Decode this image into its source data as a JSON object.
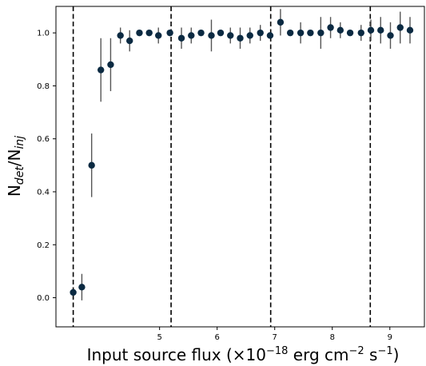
{
  "chart_data": {
    "type": "scatter",
    "xlabel_main": "Input source flux (×10",
    "xlabel_exp1": "−18",
    "xlabel_mid": " erg cm",
    "xlabel_exp2": "−2",
    "xlabel_end": " s",
    "xlabel_exp3": "−1",
    "xlabel_close": ")",
    "ylabel_n1": "N",
    "ylabel_sub1": "det",
    "ylabel_slash": "/N",
    "ylabel_sub2": "inj",
    "xlim": [
      3.2,
      9.6
    ],
    "ylim": [
      -0.11,
      1.1
    ],
    "x_ticks": [
      {
        "value": 5,
        "label": "5"
      },
      {
        "value": 6,
        "label": "6"
      },
      {
        "value": 7,
        "label": "7"
      },
      {
        "value": 8,
        "label": "8"
      },
      {
        "value": 9,
        "label": "9"
      }
    ],
    "y_ticks": [
      {
        "value": 0.0,
        "label": "0.0"
      },
      {
        "value": 0.2,
        "label": "0.2"
      },
      {
        "value": 0.4,
        "label": "0.4"
      },
      {
        "value": 0.6,
        "label": "0.6"
      },
      {
        "value": 0.8,
        "label": "0.8"
      },
      {
        "value": 1.0,
        "label": "1.0"
      }
    ],
    "vertical_lines": [
      3.5,
      5.2,
      6.93,
      8.66
    ],
    "grid": false,
    "point_color": "#0b2a42",
    "errorbar_color": "#555555",
    "points": [
      {
        "x": 3.5,
        "y": 0.02,
        "err": 0.0
      },
      {
        "x": 3.65,
        "y": 0.04,
        "err": 0.05
      },
      {
        "x": 3.82,
        "y": 0.5,
        "err": 0.12
      },
      {
        "x": 3.98,
        "y": 0.86,
        "err": 0.12
      },
      {
        "x": 4.15,
        "y": 0.88,
        "err": 0.1
      },
      {
        "x": 4.32,
        "y": 0.99,
        "err": 0.03
      },
      {
        "x": 4.48,
        "y": 0.97,
        "err": 0.04
      },
      {
        "x": 4.65,
        "y": 1.0,
        "err": 0.0
      },
      {
        "x": 4.82,
        "y": 1.0,
        "err": 0.0
      },
      {
        "x": 4.98,
        "y": 0.99,
        "err": 0.03
      },
      {
        "x": 5.18,
        "y": 1.0,
        "err": 0.0
      },
      {
        "x": 5.38,
        "y": 0.98,
        "err": 0.04
      },
      {
        "x": 5.55,
        "y": 0.99,
        "err": 0.03
      },
      {
        "x": 5.72,
        "y": 1.0,
        "err": 0.0
      },
      {
        "x": 5.9,
        "y": 0.99,
        "err": 0.06
      },
      {
        "x": 6.06,
        "y": 1.0,
        "err": 0.0
      },
      {
        "x": 6.23,
        "y": 0.99,
        "err": 0.03
      },
      {
        "x": 6.4,
        "y": 0.98,
        "err": 0.04
      },
      {
        "x": 6.57,
        "y": 0.99,
        "err": 0.03
      },
      {
        "x": 6.75,
        "y": 1.0,
        "err": 0.03
      },
      {
        "x": 6.92,
        "y": 0.99,
        "err": 0.0
      },
      {
        "x": 7.1,
        "y": 1.04,
        "err": 0.05
      },
      {
        "x": 7.27,
        "y": 1.0,
        "err": 0.0
      },
      {
        "x": 7.45,
        "y": 1.0,
        "err": 0.04
      },
      {
        "x": 7.62,
        "y": 1.0,
        "err": 0.0
      },
      {
        "x": 7.8,
        "y": 1.0,
        "err": 0.06
      },
      {
        "x": 7.97,
        "y": 1.02,
        "err": 0.04
      },
      {
        "x": 8.14,
        "y": 1.01,
        "err": 0.03
      },
      {
        "x": 8.31,
        "y": 1.0,
        "err": 0.0
      },
      {
        "x": 8.5,
        "y": 1.0,
        "err": 0.03
      },
      {
        "x": 8.67,
        "y": 1.01,
        "err": 0.04
      },
      {
        "x": 8.84,
        "y": 1.01,
        "err": 0.05
      },
      {
        "x": 9.01,
        "y": 0.99,
        "err": 0.05
      },
      {
        "x": 9.18,
        "y": 1.02,
        "err": 0.06
      },
      {
        "x": 9.35,
        "y": 1.01,
        "err": 0.05
      }
    ]
  }
}
